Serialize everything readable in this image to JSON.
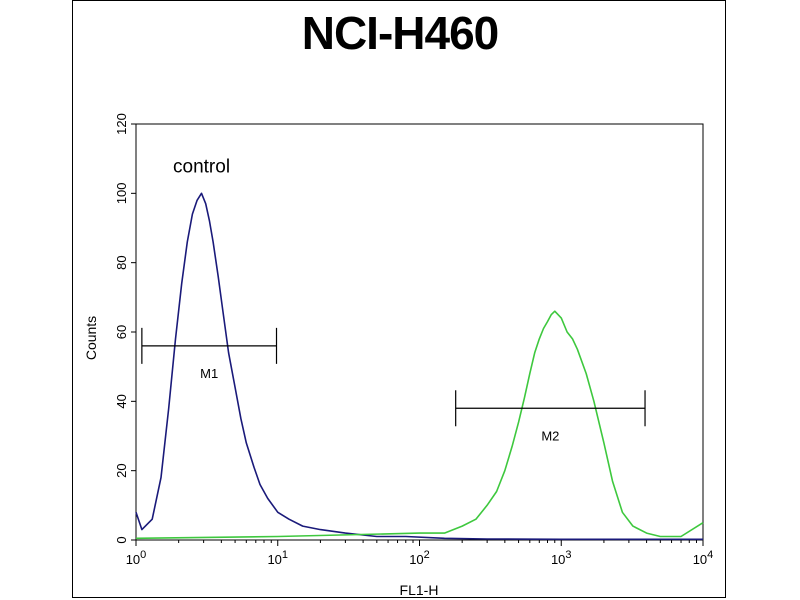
{
  "chart_data": {
    "type": "line",
    "title": "NCI-H460",
    "xlabel": "FL1-H",
    "ylabel": "Counts",
    "x_scale": "log",
    "xlim": [
      1,
      10000
    ],
    "ylim": [
      0,
      120
    ],
    "x_ticks": [
      {
        "value": 1,
        "base": "10",
        "exp": "0"
      },
      {
        "value": 10,
        "base": "10",
        "exp": "1"
      },
      {
        "value": 100,
        "base": "10",
        "exp": "2"
      },
      {
        "value": 1000,
        "base": "10",
        "exp": "3"
      },
      {
        "value": 10000,
        "base": "10",
        "exp": "4"
      }
    ],
    "y_ticks": [
      0,
      20,
      40,
      60,
      80,
      100,
      120
    ],
    "grid": false,
    "annotations": [
      {
        "text": "control",
        "x": 2.9,
        "y": 106
      }
    ],
    "markers": [
      {
        "label": "M1",
        "x_start": 1.1,
        "x_end": 9.8,
        "y": 56
      },
      {
        "label": "M2",
        "x_start": 180,
        "x_end": 3900,
        "y": 38
      }
    ],
    "series": [
      {
        "name": "control",
        "color": "#1a1a7a",
        "x": [
          1.0,
          1.1,
          1.3,
          1.5,
          1.7,
          1.9,
          2.1,
          2.3,
          2.5,
          2.7,
          2.9,
          3.1,
          3.3,
          3.5,
          3.8,
          4.1,
          4.5,
          5.0,
          5.5,
          6.0,
          6.8,
          7.5,
          8.5,
          10,
          12,
          15,
          20,
          30,
          50,
          80,
          150,
          300,
          1000,
          10000
        ],
        "y": [
          8,
          3,
          6,
          18,
          38,
          58,
          74,
          86,
          94,
          98,
          100,
          97,
          92,
          86,
          76,
          66,
          54,
          44,
          35,
          28,
          21,
          16,
          12,
          8,
          6,
          4,
          3,
          2,
          1,
          1,
          0.5,
          0.3,
          0.2,
          0.2
        ]
      },
      {
        "name": "",
        "color": "#3ec83e",
        "x": [
          1.0,
          10,
          100,
          150,
          200,
          250,
          300,
          350,
          400,
          450,
          500,
          550,
          600,
          650,
          700,
          750,
          800,
          850,
          900,
          1000,
          1100,
          1200,
          1300,
          1500,
          1700,
          2000,
          2300,
          2700,
          3200,
          4000,
          5000,
          7000,
          10000
        ],
        "y": [
          0.5,
          1,
          2,
          2,
          4,
          6,
          10,
          14,
          20,
          27,
          34,
          41,
          48,
          54,
          58,
          61,
          63,
          65,
          66,
          64,
          60,
          58,
          55,
          48,
          40,
          28,
          17,
          8,
          4,
          2,
          1,
          1,
          5
        ]
      }
    ]
  }
}
